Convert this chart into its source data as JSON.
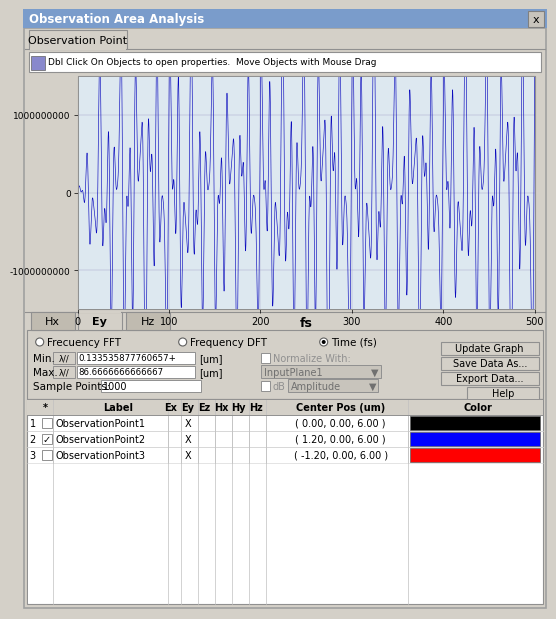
{
  "title_bar": "Observation Area Analysis",
  "tab_label": "Observation Point",
  "toolbar_text": "Dbl Click On Objects to open properties.  Move Objects with Mouse Drag",
  "xlabel": "fs",
  "yticks": [
    1000000000,
    0,
    -1000000000
  ],
  "ylim": [
    -1500000000,
    1500000000
  ],
  "xlim": [
    0,
    500
  ],
  "xticks": [
    0,
    100,
    200,
    300,
    400,
    500
  ],
  "signal_color": "#0000bb",
  "plot_bg": "#dde8f0",
  "window_bg": "#d4d0c8",
  "title_bg": "#7a9ccb",
  "min_value": "0.133535877760657+",
  "max_value": "86.6666666666667",
  "sample_points_value": "1000",
  "normalize_label": "Normalize With:",
  "input_plane": "InputPlane1",
  "amplitude_label": "Amplitude",
  "btn_update": "Update Graph",
  "btn_save": "Save Data As...",
  "btn_export": "Export Data...",
  "btn_help": "Help",
  "row_colors": [
    "#000000",
    "#0000ff",
    "#ff0000"
  ],
  "row_labels": [
    "ObservationPoint1",
    "ObservationPoint2",
    "ObservationPoint3"
  ],
  "row_pos": [
    "( 0.00, 0.00, 6.00 )",
    "( 1.20, 0.00, 6.00 )",
    "( -1.20, 0.00, 6.00 )"
  ],
  "row_checked": [
    false,
    true,
    false
  ]
}
